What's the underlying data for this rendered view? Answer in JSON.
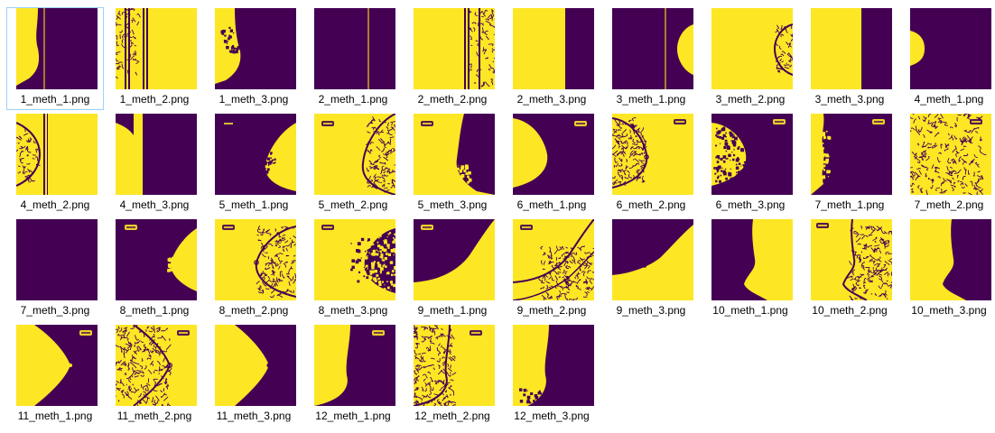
{
  "colors": {
    "yellow": "#fde725",
    "purple": "#440154"
  },
  "files": [
    {
      "name": "1_meth_1.png",
      "thumb": "m1_leftwide_line",
      "selected": true
    },
    {
      "name": "1_meth_2.png",
      "thumb": "m2_left_stripes"
    },
    {
      "name": "1_meth_3.png",
      "thumb": "m3_left_speckle"
    },
    {
      "name": "2_meth_1.png",
      "thumb": "purple_line"
    },
    {
      "name": "2_meth_2.png",
      "thumb": "m2_right_stripes"
    },
    {
      "name": "2_meth_3.png",
      "thumb": "split_yellow_left"
    },
    {
      "name": "3_meth_1.png",
      "thumb": "m1_right_bump_line"
    },
    {
      "name": "3_meth_2.png",
      "thumb": "m2_right_bump"
    },
    {
      "name": "3_meth_3.png",
      "thumb": "split_yellow_left_wide"
    },
    {
      "name": "4_meth_1.png",
      "thumb": "m1_left_bump"
    },
    {
      "name": "4_meth_2.png",
      "thumb": "m2_left_bump_line"
    },
    {
      "name": "4_meth_3.png",
      "thumb": "m3_left_bump_split"
    },
    {
      "name": "5_meth_1.png",
      "thumb": "m1_right_rough_label"
    },
    {
      "name": "5_meth_2.png",
      "thumb": "m2_right_breast_label"
    },
    {
      "name": "5_meth_3.png",
      "thumb": "m3_right_purple_label"
    },
    {
      "name": "6_meth_1.png",
      "thumb": "m1_left_round_label"
    },
    {
      "name": "6_meth_2.png",
      "thumb": "m2_left_round_label"
    },
    {
      "name": "6_meth_3.png",
      "thumb": "m3_left_speckle_label"
    },
    {
      "name": "7_meth_1.png",
      "thumb": "m1_left_rough_label"
    },
    {
      "name": "7_meth_2.png",
      "thumb": "m2_left_full_label"
    },
    {
      "name": "7_meth_3.png",
      "thumb": "all_purple"
    },
    {
      "name": "8_meth_1.png",
      "thumb": "m1_right_rough_small_label"
    },
    {
      "name": "8_meth_2.png",
      "thumb": "m2_right_breast_label2"
    },
    {
      "name": "8_meth_3.png",
      "thumb": "m3_right_speckle_label"
    },
    {
      "name": "9_meth_1.png",
      "thumb": "m1_bottom_curve_label"
    },
    {
      "name": "9_meth_2.png",
      "thumb": "m2_bottom_curve_label"
    },
    {
      "name": "9_meth_3.png",
      "thumb": "m3_bottom_curve_label"
    },
    {
      "name": "10_meth_1.png",
      "thumb": "m1_right_tall"
    },
    {
      "name": "10_meth_2.png",
      "thumb": "m2_right_tall_label"
    },
    {
      "name": "10_meth_3.png",
      "thumb": "m3_right_tall_label"
    },
    {
      "name": "11_meth_1.png",
      "thumb": "m1_left_cone_label"
    },
    {
      "name": "11_meth_2.png",
      "thumb": "m2_left_cone_label"
    },
    {
      "name": "11_meth_3.png",
      "thumb": "m3_left_cone_label"
    },
    {
      "name": "12_meth_1.png",
      "thumb": "m1_left_tall_label"
    },
    {
      "name": "12_meth_2.png",
      "thumb": "m2_left_tall_label"
    },
    {
      "name": "12_meth_3.png",
      "thumb": "m3_left_tall"
    }
  ]
}
